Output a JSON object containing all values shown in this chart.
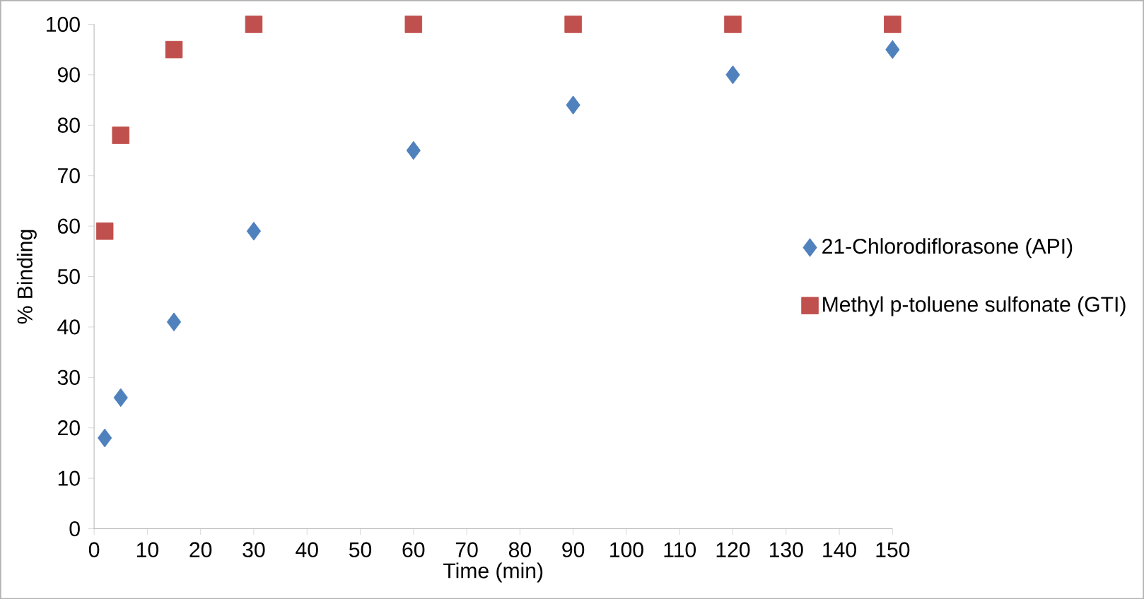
{
  "chart_data": {
    "type": "scatter",
    "xlabel": "Time (min)",
    "ylabel": "% Binding",
    "x": [
      2,
      5,
      15,
      30,
      60,
      90,
      120,
      150
    ],
    "series": [
      {
        "name": "21-Chlorodiflorasone (API)",
        "color": "#4f81bd",
        "marker": "diamond",
        "values": [
          18,
          26,
          41,
          59,
          75,
          84,
          90,
          95
        ]
      },
      {
        "name": "Methyl p-toluene sulfonate (GTI)",
        "color": "#c0504d",
        "marker": "square",
        "values": [
          59,
          78,
          95,
          100,
          100,
          100,
          100,
          100
        ]
      }
    ],
    "xlim": [
      0,
      150
    ],
    "xticks": [
      0,
      10,
      20,
      30,
      40,
      50,
      60,
      70,
      80,
      90,
      100,
      110,
      120,
      130,
      140,
      150
    ],
    "ylim": [
      0,
      100
    ],
    "yticks": [
      0,
      10,
      20,
      30,
      40,
      50,
      60,
      70,
      80,
      90,
      100
    ],
    "grid": false,
    "legend": "right"
  }
}
